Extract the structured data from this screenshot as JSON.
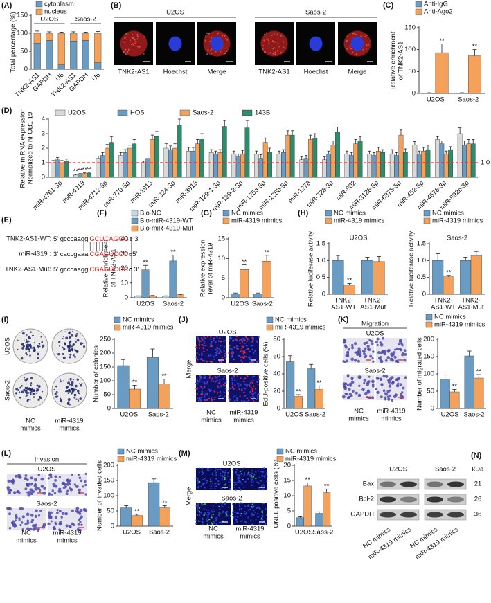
{
  "panel_labels": {
    "A": "(A)",
    "B": "(B)",
    "C": "(C)",
    "D": "(D)",
    "E": "(E)",
    "F": "(F)",
    "G": "(G)",
    "H": "(H)",
    "I": "(I)",
    "J": "(J)",
    "K": "(K)",
    "L": "(L)",
    "M": "(M)",
    "N": "(N)"
  },
  "B": {
    "cells": [
      "U2OS",
      "Saos-2"
    ],
    "stains": [
      "TNK2-AS1",
      "Hoechst",
      "Merge",
      "TNK2-AS1",
      "Hoechst",
      "Merge"
    ]
  },
  "E": {
    "rows": [
      {
        "name": "TNK2-AS1-WT:",
        "left": "5' gcccaagg",
        "site": "GCUCAGGG",
        "right": "c 3'"
      },
      {
        "name": "miR-4319 :",
        "left": "3' caccgaaa",
        "site": "CGAGUCCC",
        "right": "u5'"
      },
      {
        "name": "TNK2-AS1-Mut:",
        "left": "5' gcccaagg",
        "site": "CGAGUCCC",
        "right": "c 3'"
      }
    ]
  },
  "I": {
    "rows": [
      "U2OS",
      "Saos-2"
    ],
    "cols": [
      [
        "NC",
        "mimics"
      ],
      [
        "miR-4319",
        "mimics"
      ]
    ]
  },
  "J": {
    "side": "Merge",
    "rows": [
      "U2OS",
      "Saos-2"
    ],
    "cols": [
      [
        "NC",
        "mimics"
      ],
      [
        "miR-4319",
        "mimics"
      ]
    ]
  },
  "K": {
    "header": "Migration",
    "rows": [
      "U2OS",
      "Saos-2"
    ],
    "cols": [
      [
        "NC",
        "mimics"
      ],
      [
        "miR-4319",
        "mimics"
      ]
    ]
  },
  "L": {
    "header": "Invasion",
    "rows": [
      "U2OS",
      "Saos-2"
    ],
    "cols": [
      [
        "NC",
        "mimics"
      ],
      [
        "miR-4319",
        "mimics"
      ]
    ]
  },
  "M": {
    "side": "Merge",
    "rows": [
      "U2OS",
      "Saos-2"
    ],
    "cols": [
      [
        "NC",
        "mimics"
      ],
      [
        "miR-4319",
        "mimics"
      ]
    ]
  },
  "N": {
    "cells": [
      "U2OS",
      "Saos-2"
    ],
    "proteins": [
      "Bax",
      "Bcl-2",
      "GAPDH"
    ],
    "unit": "kDa",
    "sizes": [
      21,
      26,
      36
    ],
    "lanes": [
      "NC mimics",
      "miR-4319 mimics",
      "NC mimics",
      "miR-4319 mimics"
    ]
  },
  "chart_data": [
    {
      "type": "stacked_bar",
      "y_label": "Total percentage (%)",
      "groups": [
        "U2OS",
        "Saos-2"
      ],
      "categories": [
        "TNK2-AS1",
        "GAPDH",
        "U6",
        "TNK2-AS1",
        "GAPDH",
        "U6"
      ],
      "ylim": [
        0,
        150
      ],
      "yticks": [
        0,
        50,
        100,
        150
      ],
      "series": [
        {
          "name": "cytoplasm",
          "color": "#6a9bc3",
          "values": [
            72,
            80,
            12,
            78,
            80,
            18
          ],
          "errors": [
            8,
            4,
            3,
            3,
            4,
            15
          ]
        },
        {
          "name": "nucleus",
          "color": "#f4a25b",
          "values": [
            28,
            20,
            88,
            22,
            20,
            82
          ],
          "errors": [
            6,
            4,
            3,
            4,
            3,
            5
          ]
        }
      ]
    },
    {
      "type": "bar",
      "y_label": [
        "Relative enrichment",
        "of TNK2-AS1"
      ],
      "categories": [
        "U2OS",
        "Saos-2"
      ],
      "ylim": [
        0,
        150
      ],
      "yticks": [
        0,
        50,
        100,
        150
      ],
      "series": [
        {
          "name": "Anti-IgG",
          "color": "#6a9bc3",
          "values": [
            1,
            1
          ],
          "errors": [
            0.5,
            0.5
          ]
        },
        {
          "name": "Anti-Ago2",
          "color": "#f4a25b",
          "values": [
            93,
            86
          ],
          "errors": [
            20,
            14
          ],
          "sig": [
            "**",
            "**"
          ]
        }
      ]
    },
    {
      "type": "bar",
      "y_label": [
        "Relative miRNA expression",
        "Normalized to hFOB1.19"
      ],
      "categories": [
        "miR-4761-3p",
        "miR-4319",
        "miR-4712-5p",
        "miR-770-5p",
        "miR-1913",
        "miR-324-3p",
        "miR-3918",
        "miR-129-1-3p",
        "miR-129-2-3p",
        "miR-125a-5p",
        "miR-125b-5p",
        "miR-1278",
        "miR-328-3p",
        "miR-802",
        "miR-3126-5p",
        "miR-6875-5p",
        "miR-452-5p",
        "miR-4676-3p",
        "miR-892c-3p"
      ],
      "ylim": [
        0,
        4
      ],
      "yticks": [
        0,
        1,
        2,
        3,
        4
      ],
      "ref_line": {
        "value": 1,
        "label": "1.0",
        "color": "#e53222"
      },
      "series": [
        {
          "name": "U2OS",
          "color": "#d9d9d9",
          "values": [
            1.0,
            0.15,
            1.3,
            1.5,
            1.0,
            2.0,
            1.8,
            1.7,
            1.6,
            1.6,
            1.6,
            1.2,
            1.2,
            1.6,
            1.6,
            1.6,
            2.2,
            2.6,
            3.0
          ],
          "errors": [
            0.15,
            0.05,
            0.15,
            0.2,
            0.1,
            0.3,
            0.25,
            0.2,
            0.2,
            0.2,
            0.2,
            0.2,
            0.2,
            0.2,
            0.2,
            0.3,
            0.25,
            0.2,
            0.4
          ],
          "sig": [
            null,
            "**",
            null,
            null,
            null,
            null,
            null,
            null,
            null,
            null,
            null,
            null,
            null,
            null,
            null,
            null,
            null,
            null,
            null
          ]
        },
        {
          "name": "HOS",
          "color": "#6a9bc3",
          "values": [
            1.2,
            0.2,
            1.5,
            1.7,
            1.3,
            1.9,
            1.8,
            1.6,
            1.4,
            1.3,
            1.7,
            1.3,
            1.6,
            1.5,
            1.5,
            1.5,
            1.6,
            2.3,
            2.2
          ],
          "errors": [
            0.15,
            0.05,
            0.2,
            0.2,
            0.15,
            0.25,
            0.25,
            0.2,
            0.2,
            0.25,
            0.2,
            0.2,
            0.2,
            0.2,
            0.2,
            0.2,
            0.2,
            0.2,
            0.3
          ],
          "sig": [
            null,
            "**",
            null,
            null,
            null,
            null,
            null,
            null,
            null,
            null,
            null,
            null,
            null,
            null,
            null,
            null,
            null,
            null,
            null
          ]
        },
        {
          "name": "Saos-2",
          "color": "#f4a25b",
          "values": [
            1.0,
            0.25,
            2.0,
            2.0,
            2.6,
            2.0,
            2.3,
            1.7,
            1.6,
            2.4,
            2.9,
            2.6,
            2.2,
            2.3,
            1.8,
            2.9,
            1.8,
            1.6,
            2.3
          ],
          "errors": [
            0.15,
            0.05,
            0.25,
            0.2,
            0.3,
            0.3,
            0.3,
            0.2,
            0.25,
            0.3,
            0.3,
            0.3,
            0.3,
            0.3,
            0.25,
            0.35,
            0.25,
            0.2,
            0.3
          ],
          "sig": [
            null,
            "**",
            null,
            null,
            null,
            null,
            null,
            null,
            null,
            null,
            null,
            null,
            null,
            null,
            null,
            null,
            null,
            null,
            null
          ]
        },
        {
          "name": "143B",
          "color": "#2e8b6e",
          "values": [
            1.1,
            0.28,
            2.4,
            2.3,
            2.8,
            3.6,
            2.6,
            3.5,
            3.4,
            1.7,
            2.9,
            2.7,
            3.1,
            2.5,
            1.7,
            1.7,
            1.9,
            1.9,
            2.3
          ],
          "errors": [
            0.15,
            0.05,
            0.4,
            0.3,
            0.35,
            0.4,
            0.4,
            0.4,
            0.5,
            0.3,
            0.3,
            0.3,
            0.35,
            0.3,
            0.2,
            0.25,
            0.3,
            0.2,
            0.3
          ],
          "sig": [
            null,
            "**",
            null,
            null,
            null,
            null,
            null,
            null,
            null,
            null,
            null,
            null,
            null,
            null,
            null,
            null,
            null,
            null,
            null
          ]
        }
      ]
    },
    {
      "type": "bar",
      "y_label": [
        "Relative enrichment",
        "of TNK2-AS1"
      ],
      "categories": [
        "U2OS",
        "Saos-2"
      ],
      "ylim": [
        0,
        40
      ],
      "yticks": [
        0,
        10,
        20,
        30,
        40
      ],
      "series": [
        {
          "name": "Bio-NC",
          "color": "#c5d9e8",
          "values": [
            1,
            1
          ],
          "errors": [
            0.3,
            0.3
          ]
        },
        {
          "name": "Bio-miR-4319-WT",
          "color": "#6a9bc3",
          "values": [
            19,
            25
          ],
          "errors": [
            3,
            4
          ],
          "sig": [
            "**",
            "**"
          ]
        },
        {
          "name": "Bio-miR-4319-Mut",
          "color": "#f4a25b",
          "values": [
            1.2,
            2
          ],
          "errors": [
            0.3,
            0.4
          ]
        }
      ]
    },
    {
      "type": "bar",
      "y_label": [
        "Relative expression",
        "level of miR-4319"
      ],
      "categories": [
        "U2OS",
        "Saos-2"
      ],
      "ylim": [
        0,
        15
      ],
      "yticks": [
        0,
        5,
        10,
        15
      ],
      "series": [
        {
          "name": "NC mimics",
          "color": "#6a9bc3",
          "values": [
            1,
            1
          ],
          "errors": [
            0.2,
            0.2
          ]
        },
        {
          "name": "miR-4319 mimics",
          "color": "#f4a25b",
          "values": [
            7.2,
            9.3
          ],
          "errors": [
            1.2,
            1.5
          ],
          "sig": [
            "**",
            "**"
          ]
        }
      ]
    },
    {
      "type": "bar",
      "title": "U2OS",
      "y_label": "Relative luciferase activity",
      "categories": [
        [
          "TNK2-",
          "AS1-WT"
        ],
        [
          "TNK2-",
          "AS1-Mut"
        ]
      ],
      "ylim": [
        0,
        1.5
      ],
      "yticks": [
        0,
        0.5,
        {
          "value": 1,
          "label": "1.0"
        },
        1.5
      ],
      "series": [
        {
          "name": "NC mimics",
          "color": "#6a9bc3",
          "values": [
            1,
            1
          ],
          "errors": [
            0.15,
            0.1
          ]
        },
        {
          "name": "miR-4319 mimics",
          "color": "#f4a25b",
          "values": [
            0.27,
            0.97
          ],
          "errors": [
            0.05,
            0.15
          ],
          "sig": [
            "**",
            null
          ]
        }
      ]
    },
    {
      "type": "bar",
      "title": "Saos-2",
      "y_label": "Relative luciferase activity",
      "categories": [
        [
          "TNK2-",
          "AS1-WT"
        ],
        [
          "TNK2-",
          "AS1-Mut"
        ]
      ],
      "ylim": [
        0,
        1.5
      ],
      "yticks": [
        0,
        0.5,
        {
          "value": 1,
          "label": "1.0"
        },
        1.5
      ],
      "series": [
        {
          "name": "NC mimics",
          "color": "#6a9bc3",
          "values": [
            1,
            1
          ],
          "errors": [
            0.2,
            0.1
          ]
        },
        {
          "name": "miR-4319 mimics",
          "color": "#f4a25b",
          "values": [
            0.52,
            1.15
          ],
          "errors": [
            0.04,
            0.12
          ],
          "sig": [
            "**",
            null
          ]
        }
      ]
    },
    {
      "type": "bar",
      "y_label": "Number of colonies",
      "categories": [
        "U2OS",
        "Saos-2"
      ],
      "ylim": [
        0,
        250
      ],
      "yticks": [
        0,
        50,
        100,
        150,
        200,
        250
      ],
      "series": [
        {
          "name": "NC mimics",
          "color": "#6a9bc3",
          "values": [
            155,
            185
          ],
          "errors": [
            22,
            30
          ]
        },
        {
          "name": "miR-4319 mimics",
          "color": "#f4a25b",
          "values": [
            70,
            88
          ],
          "errors": [
            14,
            18
          ],
          "sig": [
            "**",
            "**"
          ]
        }
      ]
    },
    {
      "type": "bar",
      "y_label": "EdU-positive cells (%)",
      "categories": [
        "U2OS",
        "Saos-2"
      ],
      "ylim": [
        0,
        80
      ],
      "yticks": [
        0,
        20,
        40,
        60,
        80
      ],
      "series": [
        {
          "name": "NC mimics",
          "color": "#6a9bc3",
          "values": [
            54,
            46
          ],
          "errors": [
            7,
            5
          ]
        },
        {
          "name": "miR-4319 mimics",
          "color": "#f4a25b",
          "values": [
            14,
            22
          ],
          "errors": [
            2,
            4
          ],
          "sig": [
            "**",
            "**"
          ]
        }
      ]
    },
    {
      "type": "bar",
      "y_label": "Number of migrated cells",
      "categories": [
        "U2OS",
        "Saos-2"
      ],
      "ylim": [
        0,
        200
      ],
      "yticks": [
        0,
        50,
        100,
        150,
        200
      ],
      "series": [
        {
          "name": "NC mimics",
          "color": "#6a9bc3",
          "values": [
            85,
            152
          ],
          "errors": [
            12,
            14
          ]
        },
        {
          "name": "miR-4319 mimics",
          "color": "#f4a25b",
          "values": [
            48,
            88
          ],
          "errors": [
            7,
            10
          ],
          "sig": [
            "**",
            "**"
          ]
        }
      ]
    },
    {
      "type": "bar",
      "y_label": "Number of invaded cells",
      "categories": [
        "U2OS",
        "Saos-2"
      ],
      "ylim": [
        0,
        200
      ],
      "yticks": [
        0,
        50,
        100,
        150,
        200
      ],
      "series": [
        {
          "name": "NC mimics",
          "color": "#6a9bc3",
          "values": [
            60,
            143
          ],
          "errors": [
            7,
            12
          ]
        },
        {
          "name": "miR-4319 mimics",
          "color": "#f4a25b",
          "values": [
            35,
            60
          ],
          "errors": [
            4,
            7
          ],
          "sig": [
            "**",
            "**"
          ]
        }
      ]
    },
    {
      "type": "bar",
      "y_label": "TUNEL positive cells (%)",
      "categories": [
        "U2OS",
        "Saos-2"
      ],
      "ylim": [
        0,
        20
      ],
      "yticks": [
        0,
        5,
        10,
        15,
        20
      ],
      "series": [
        {
          "name": "NC mimics",
          "color": "#6a9bc3",
          "values": [
            2.8,
            4.2
          ],
          "errors": [
            0.3,
            0.5
          ]
        },
        {
          "name": "miR-4319 mimics",
          "color": "#f4a25b",
          "values": [
            13.2,
            11
          ],
          "errors": [
            1.0,
            1.2
          ],
          "sig": [
            "**",
            "**"
          ]
        }
      ]
    }
  ]
}
